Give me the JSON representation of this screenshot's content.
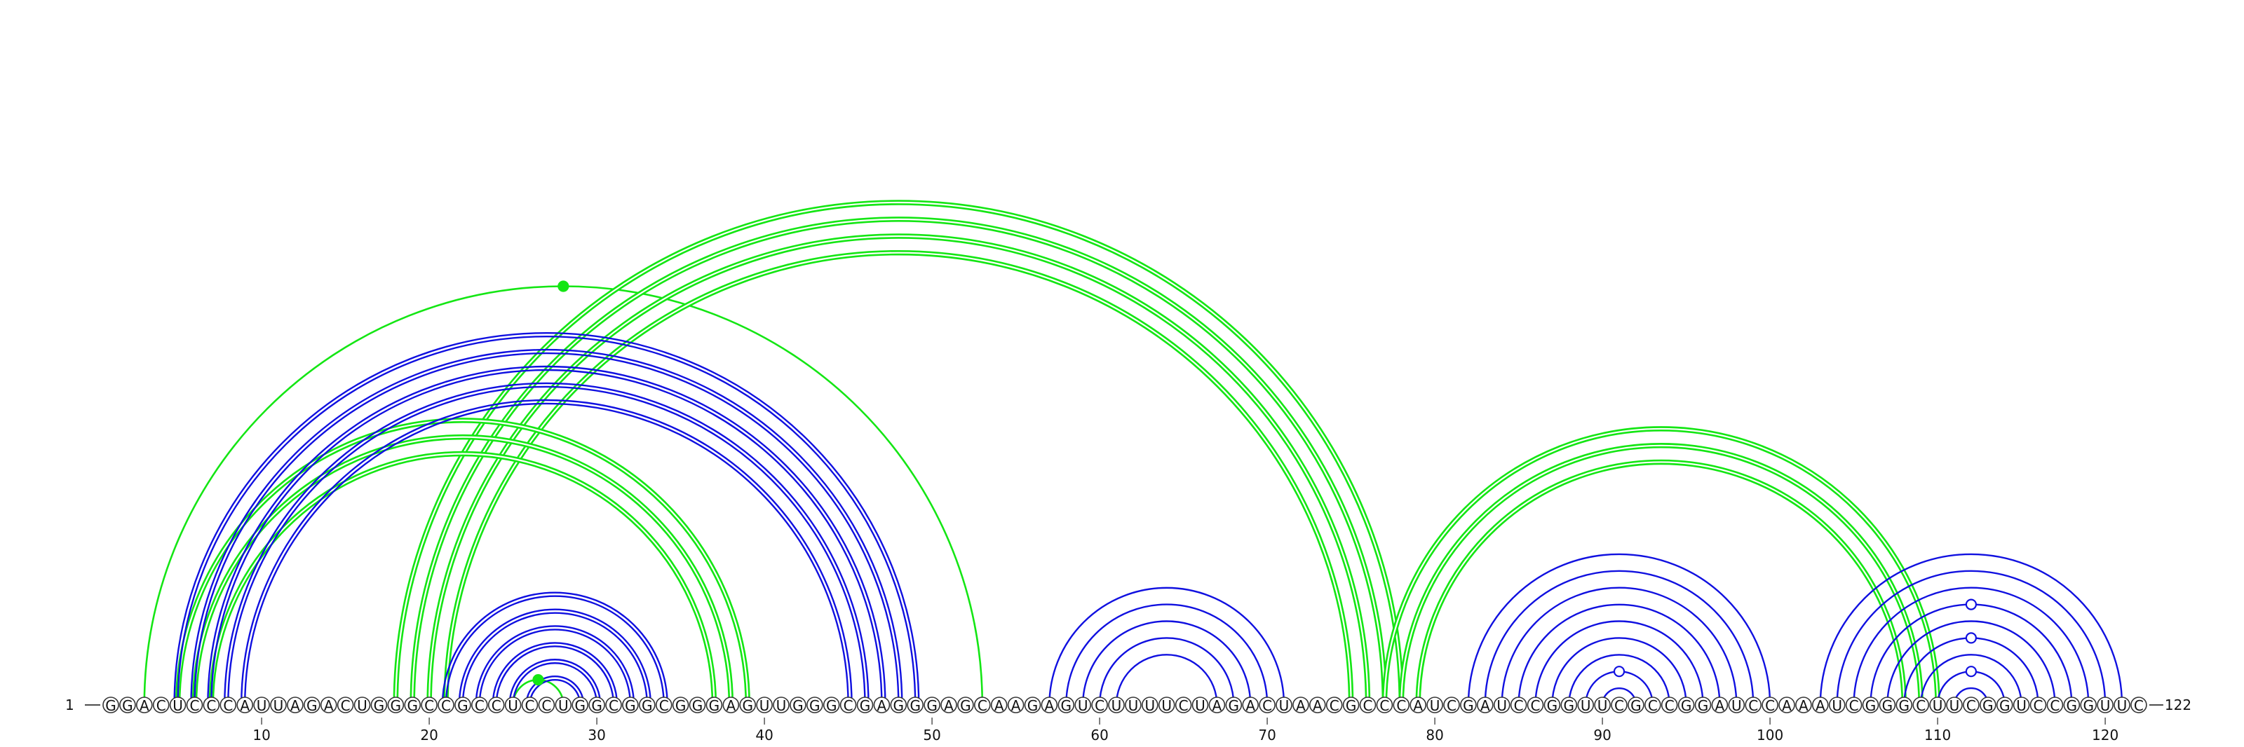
{
  "diagram": {
    "type": "rna-arc-diagram",
    "sequence": "GGACUCCCAUUAGACUGGGCCGCCUCCUGGCGGCGGGAGUUGGGCGAGGGAGCAAGAGUCUUUUCUAGACUAACGCCCAUCGAUCCGGUUCGCCGGAUCCAAAUCGGGCUUCGGUCCGGUUC",
    "start_label": "1",
    "end_label": "122",
    "tick_labels": [
      "10",
      "20",
      "30",
      "40",
      "50",
      "60",
      "70",
      "80",
      "90",
      "100",
      "110",
      "120"
    ],
    "colors": {
      "blue": "#1010e0",
      "green": "#14e614",
      "circle_stroke": "#333333",
      "text": "#111111"
    },
    "blue_helices": [
      {
        "i": 5,
        "j": 49,
        "len": 5
      },
      {
        "i": 21,
        "j": 34,
        "len": 6
      },
      {
        "i": 57,
        "j": 71,
        "len": 5
      },
      {
        "i": 82,
        "j": 100,
        "len": 9
      },
      {
        "i": 103,
        "j": 121,
        "len": 9
      }
    ],
    "green_helices": [
      {
        "i": 18,
        "j": 78,
        "len": 4
      },
      {
        "i": 5,
        "j": 39,
        "len": 3
      },
      {
        "i": 77,
        "j": 110,
        "len": 3
      }
    ],
    "green_single_arcs": [
      {
        "i": 3,
        "j": 53
      },
      {
        "i": 25,
        "j": 28
      }
    ],
    "markers": [
      {
        "color": "green",
        "filled": true,
        "i": 3,
        "j": 53
      },
      {
        "color": "green",
        "filled": true,
        "i": 25,
        "j": 28
      },
      {
        "color": "blue",
        "filled": false,
        "i": 89,
        "j": 93
      },
      {
        "color": "blue",
        "filled": false,
        "i": 110,
        "j": 114
      },
      {
        "color": "blue",
        "filled": false,
        "i": 108,
        "j": 116
      },
      {
        "color": "blue",
        "filled": false,
        "i": 106,
        "j": 118
      }
    ]
  }
}
